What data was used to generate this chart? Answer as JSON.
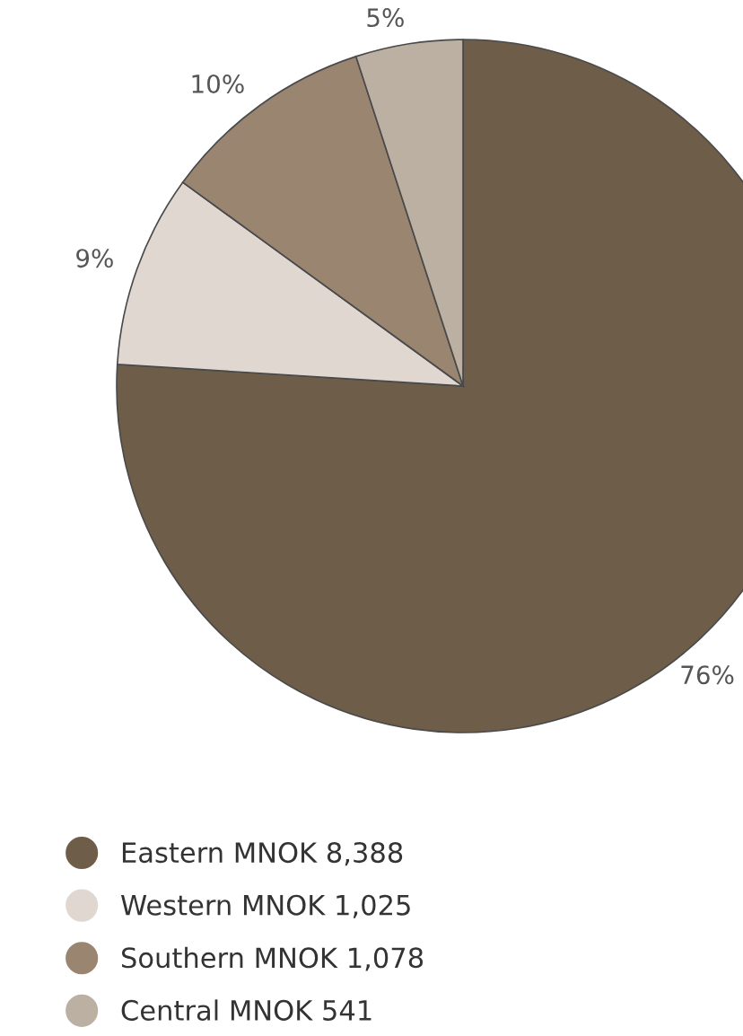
{
  "chart_data": {
    "type": "pie",
    "categories": [
      "Eastern MNOK 8,388",
      "Western MNOK 1,025",
      "Southern MNOK 1,078",
      "Central MNOK 541"
    ],
    "values": [
      76,
      9,
      10,
      5
    ],
    "value_labels": [
      "76%",
      "9%",
      "10%",
      "5%"
    ],
    "colors": [
      "#6e5d48",
      "#e0d8d0",
      "#9a8570",
      "#bbb0a2"
    ],
    "legend": "bottom left"
  }
}
